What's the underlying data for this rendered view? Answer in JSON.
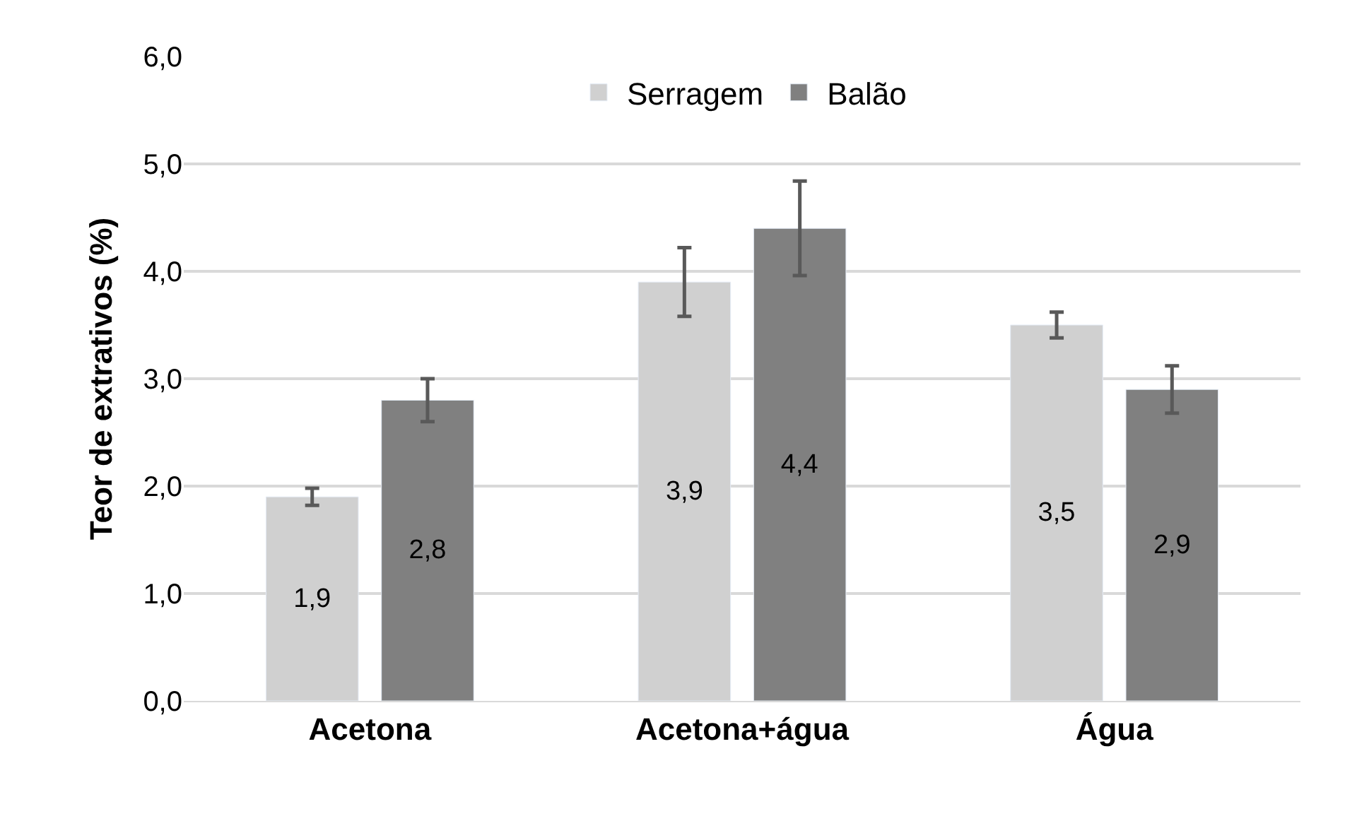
{
  "chart_data": {
    "type": "bar",
    "ylabel": "Teor de extrativos (%)",
    "categories": [
      "Acetona",
      "Acetona+água",
      "Água"
    ],
    "series": [
      {
        "name": "Serragem",
        "color": "#d0d0d0",
        "values": [
          1.9,
          3.9,
          3.5
        ],
        "errors": [
          0.08,
          0.32,
          0.12
        ],
        "value_labels": [
          "1,9",
          "3,9",
          "3,5"
        ]
      },
      {
        "name": "Balão",
        "color": "#808080",
        "values": [
          2.8,
          4.4,
          2.9
        ],
        "errors": [
          0.2,
          0.44,
          0.22
        ],
        "value_labels": [
          "2,8",
          "4,4",
          "2,9"
        ]
      }
    ],
    "ylim": [
      0,
      6
    ],
    "yticks": [
      {
        "value": 0,
        "label": "0,0"
      },
      {
        "value": 1,
        "label": "1,0"
      },
      {
        "value": 2,
        "label": "2,0"
      },
      {
        "value": 3,
        "label": "3,0"
      },
      {
        "value": 4,
        "label": "4,0"
      },
      {
        "value": 5,
        "label": "5,0"
      },
      {
        "value": 6,
        "label": "6,0"
      }
    ],
    "grid": "y",
    "legend": "top"
  }
}
